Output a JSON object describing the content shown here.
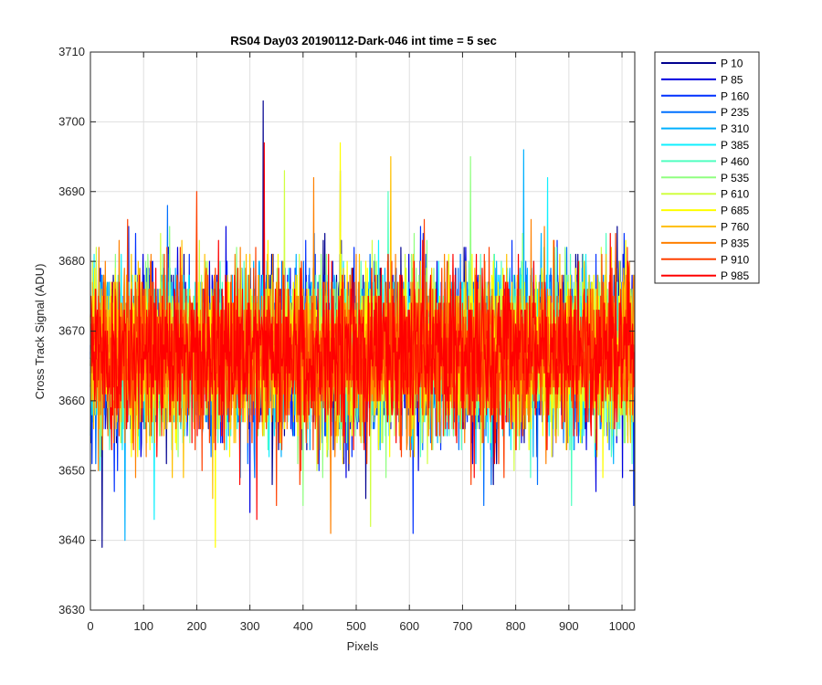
{
  "chart_data": {
    "type": "line",
    "title": "RS04 Day03 20190112-Dark-046 int time = 5 sec",
    "xlabel": "Pixels",
    "ylabel": "Cross Track Signal (ADU)",
    "xlim": [
      0,
      1024
    ],
    "ylim": [
      3630,
      3710
    ],
    "xticks": [
      0,
      100,
      200,
      300,
      400,
      500,
      600,
      700,
      800,
      900,
      1000
    ],
    "yticks": [
      3630,
      3640,
      3650,
      3660,
      3670,
      3680,
      3690,
      3700,
      3710
    ],
    "grid": true,
    "legend_position": "outside-top-right",
    "series_summary": {
      "points_per_series": 1024,
      "typical_mean": 3667,
      "typical_range": [
        3655,
        3680
      ]
    },
    "series": [
      {
        "name": "P 10",
        "color": "#00008f",
        "extremes": [
          {
            "x": 22,
            "y": 3639
          },
          {
            "x": 325,
            "y": 3703
          }
        ]
      },
      {
        "name": "P 85",
        "color": "#0000e0",
        "extremes": [
          {
            "x": 470,
            "y": 3693
          },
          {
            "x": 300,
            "y": 3644
          }
        ]
      },
      {
        "name": "P 160",
        "color": "#0030ff",
        "extremes": [
          {
            "x": 607,
            "y": 3641
          },
          {
            "x": 1022,
            "y": 3645
          }
        ]
      },
      {
        "name": "P 235",
        "color": "#0070ff",
        "extremes": [
          {
            "x": 740,
            "y": 3645
          },
          {
            "x": 145,
            "y": 3688
          }
        ]
      },
      {
        "name": "P 310",
        "color": "#00b0ff",
        "extremes": [
          {
            "x": 65,
            "y": 3640
          },
          {
            "x": 815,
            "y": 3696
          }
        ]
      },
      {
        "name": "P 385",
        "color": "#10f0ff",
        "extremes": [
          {
            "x": 120,
            "y": 3643
          },
          {
            "x": 860,
            "y": 3692
          }
        ]
      },
      {
        "name": "P 460",
        "color": "#50ffc0",
        "extremes": [
          {
            "x": 905,
            "y": 3645
          },
          {
            "x": 560,
            "y": 3690
          }
        ]
      },
      {
        "name": "P 535",
        "color": "#90ff80",
        "extremes": [
          {
            "x": 715,
            "y": 3695
          },
          {
            "x": 400,
            "y": 3645
          }
        ]
      },
      {
        "name": "P 610",
        "color": "#d0ff40",
        "extremes": [
          {
            "x": 527,
            "y": 3642
          },
          {
            "x": 365,
            "y": 3693
          }
        ]
      },
      {
        "name": "P 685",
        "color": "#ffff00",
        "extremes": [
          {
            "x": 235,
            "y": 3639
          },
          {
            "x": 470,
            "y": 3697
          }
        ]
      },
      {
        "name": "P 760",
        "color": "#ffc000",
        "extremes": [
          {
            "x": 565,
            "y": 3695
          },
          {
            "x": 230,
            "y": 3646
          }
        ]
      },
      {
        "name": "P 835",
        "color": "#ff8000",
        "extremes": [
          {
            "x": 452,
            "y": 3641
          },
          {
            "x": 420,
            "y": 3692
          }
        ]
      },
      {
        "name": "P 910",
        "color": "#ff4000",
        "extremes": [
          {
            "x": 200,
            "y": 3690
          },
          {
            "x": 350,
            "y": 3645
          }
        ]
      },
      {
        "name": "P 985",
        "color": "#ff0000",
        "extremes": [
          {
            "x": 327,
            "y": 3697
          },
          {
            "x": 313,
            "y": 3643
          }
        ]
      }
    ]
  }
}
